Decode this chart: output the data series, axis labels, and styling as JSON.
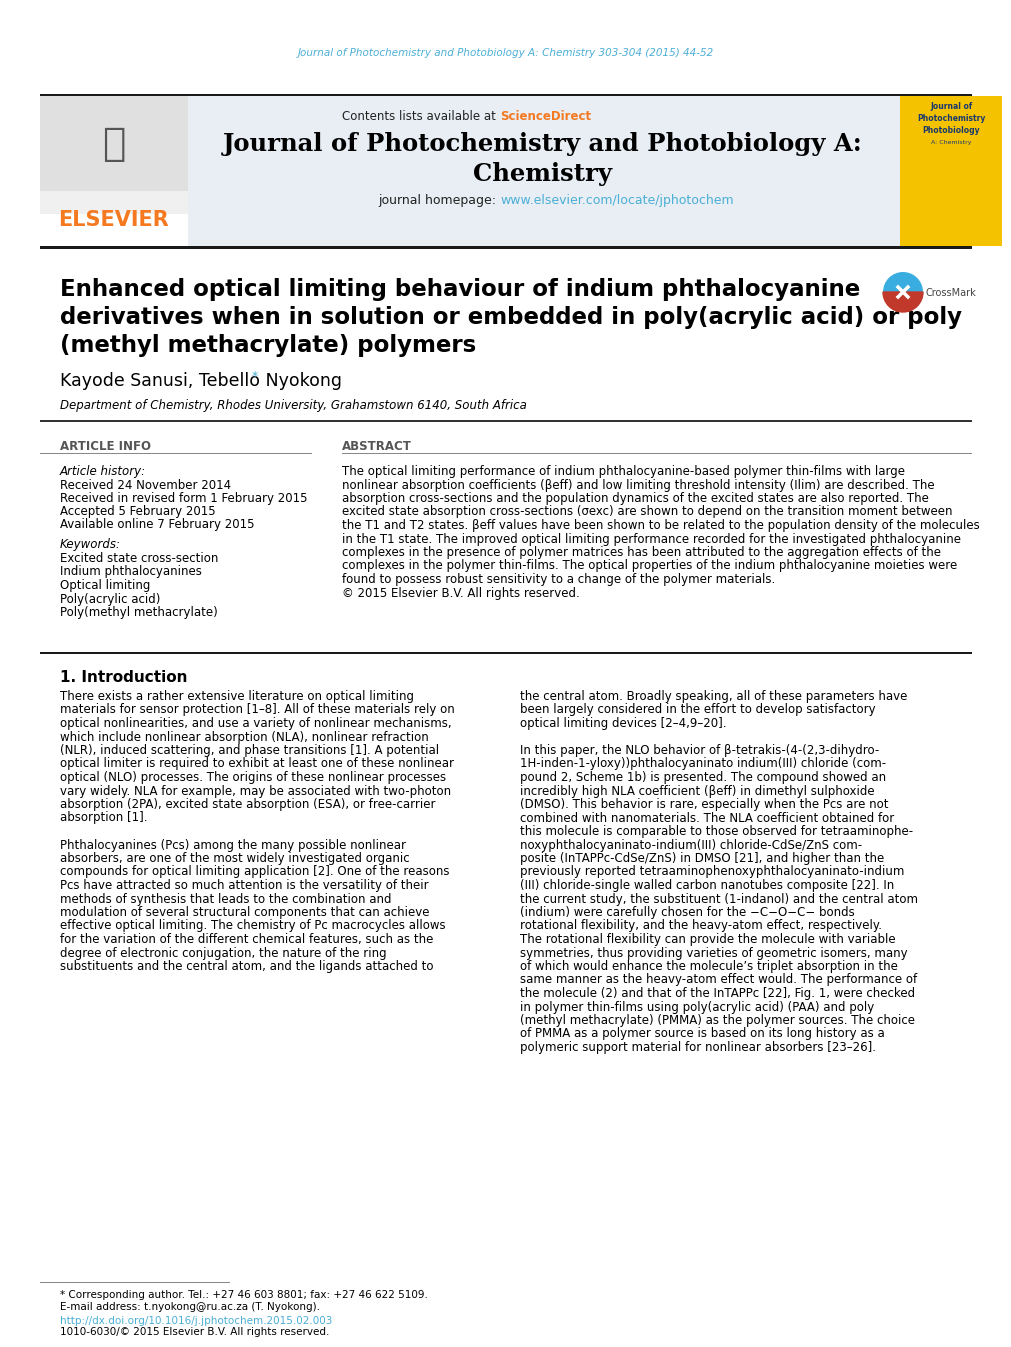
{
  "page_bg": "#ffffff",
  "top_journal_ref": "Journal of Photochemistry and Photobiology A: Chemistry 303-304 (2015) 44-52",
  "top_ref_color": "#4bafd6",
  "header_bg": "#e8eef4",
  "header_contents": "Contents lists available at",
  "sciencedirect_text": "ScienceDirect",
  "sciencedirect_color": "#f47920",
  "journal_title_line1": "Journal of Photochemistry and Photobiology A:",
  "journal_title_line2": "Chemistry",
  "journal_homepage_prefix": "journal homepage: ",
  "journal_homepage_url": "www.elsevier.com/locate/jphotochem",
  "journal_homepage_url_color": "#4bafd6",
  "elsevier_color": "#f47920",
  "article_title_l1": "Enhanced optical limiting behaviour of indium phthalocyanine",
  "article_title_l2": "derivatives when in solution or embedded in poly(acrylic acid) or poly",
  "article_title_l3": "(methyl methacrylate) polymers",
  "authors": "Kayode Sanusi, Tebello Nyokong",
  "affiliation": "Department of Chemistry, Rhodes University, Grahamstown 6140, South Africa",
  "article_info_label": "ARTICLE INFO",
  "abstract_label": "ABSTRACT",
  "article_history_label": "Article history:",
  "received1": "Received 24 November 2014",
  "received2": "Received in revised form 1 February 2015",
  "accepted": "Accepted 5 February 2015",
  "available": "Available online 7 February 2015",
  "keywords_label": "Keywords:",
  "keywords": [
    "Excited state cross-section",
    "Indium phthalocyanines",
    "Optical limiting",
    "Poly(acrylic acid)",
    "Poly(methyl methacrylate)"
  ],
  "abstract_lines": [
    "The optical limiting performance of indium phthalocyanine-based polymer thin-films with large",
    "nonlinear absorption coefficients (βeff) and low limiting threshold intensity (Ilim) are described. The",
    "absorption cross-sections and the population dynamics of the excited states are also reported. The",
    "excited state absorption cross-sections (σexc) are shown to depend on the transition moment between",
    "the T1 and T2 states. βeff values have been shown to be related to the population density of the molecules",
    "in the T1 state. The improved optical limiting performance recorded for the investigated phthalocyanine",
    "complexes in the presence of polymer matrices has been attributed to the aggregation effects of the",
    "complexes in the polymer thin-films. The optical properties of the indium phthalocyanine moieties were",
    "found to possess robust sensitivity to a change of the polymer materials.",
    "© 2015 Elsevier B.V. All rights reserved."
  ],
  "intro_heading": "1. Introduction",
  "col1_lines": [
    "There exists a rather extensive literature on optical limiting",
    "materials for sensor protection [1–8]. All of these materials rely on",
    "optical nonlinearities, and use a variety of nonlinear mechanisms,",
    "which include nonlinear absorption (NLA), nonlinear refraction",
    "(NLR), induced scattering, and phase transitions [1]. A potential",
    "optical limiter is required to exhibit at least one of these nonlinear",
    "optical (NLO) processes. The origins of these nonlinear processes",
    "vary widely. NLA for example, may be associated with two-photon",
    "absorption (2PA), excited state absorption (ESA), or free-carrier",
    "absorption [1].",
    "",
    "Phthalocyanines (Pcs) among the many possible nonlinear",
    "absorbers, are one of the most widely investigated organic",
    "compounds for optical limiting application [2]. One of the reasons",
    "Pcs have attracted so much attention is the versatility of their",
    "methods of synthesis that leads to the combination and",
    "modulation of several structural components that can achieve",
    "effective optical limiting. The chemistry of Pc macrocycles allows",
    "for the variation of the different chemical features, such as the",
    "degree of electronic conjugation, the nature of the ring",
    "substituents and the central atom, and the ligands attached to"
  ],
  "col2_lines": [
    "the central atom. Broadly speaking, all of these parameters have",
    "been largely considered in the effort to develop satisfactory",
    "optical limiting devices [2–4,9–20].",
    "",
    "In this paper, the NLO behavior of β-tetrakis-(4-(2,3-dihydro-",
    "1H-inden-1-yloxy))phthalocyaninato indium(III) chloride (com-",
    "pound 2, Scheme 1b) is presented. The compound showed an",
    "incredibly high NLA coefficient (βeff) in dimethyl sulphoxide",
    "(DMSO). This behavior is rare, especially when the Pcs are not",
    "combined with nanomaterials. The NLA coefficient obtained for",
    "this molecule is comparable to those observed for tetraaminophe-",
    "noxyphthalocyaninato-indium(III) chloride-CdSe/ZnS com-",
    "posite (InTAPPc-CdSe/ZnS) in DMSO [21], and higher than the",
    "previously reported tetraaminophenoxyphthalocyaninato-indium",
    "(III) chloride-single walled carbon nanotubes composite [22]. In",
    "the current study, the substituent (1-indanol) and the central atom",
    "(indium) were carefully chosen for the −C−O−C− bonds",
    "rotational flexibility, and the heavy-atom effect, respectively.",
    "The rotational flexibility can provide the molecule with variable",
    "symmetries, thus providing varieties of geometric isomers, many",
    "of which would enhance the molecule’s triplet absorption in the",
    "same manner as the heavy-atom effect would. The performance of",
    "the molecule (2) and that of the InTAPPc [22], Fig. 1, were checked",
    "in polymer thin-films using poly(acrylic acid) (PAA) and poly",
    "(methyl methacrylate) (PMMA) as the polymer sources. The choice",
    "of PMMA as a polymer source is based on its long history as a",
    "polymeric support material for nonlinear absorbers [23–26]."
  ],
  "footnote_corresponding": "* Corresponding author. Tel.: +27 46 603 8801; fax: +27 46 622 5109.",
  "footnote_email": "E-mail address: t.nyokong@ru.ac.za (T. Nyokong).",
  "doi_text": "http://dx.doi.org/10.1016/j.jphotochem.2015.02.003",
  "doi_color": "#4bafd6",
  "copyright_text": "1010-6030/© 2015 Elsevier B.V. All rights reserved."
}
